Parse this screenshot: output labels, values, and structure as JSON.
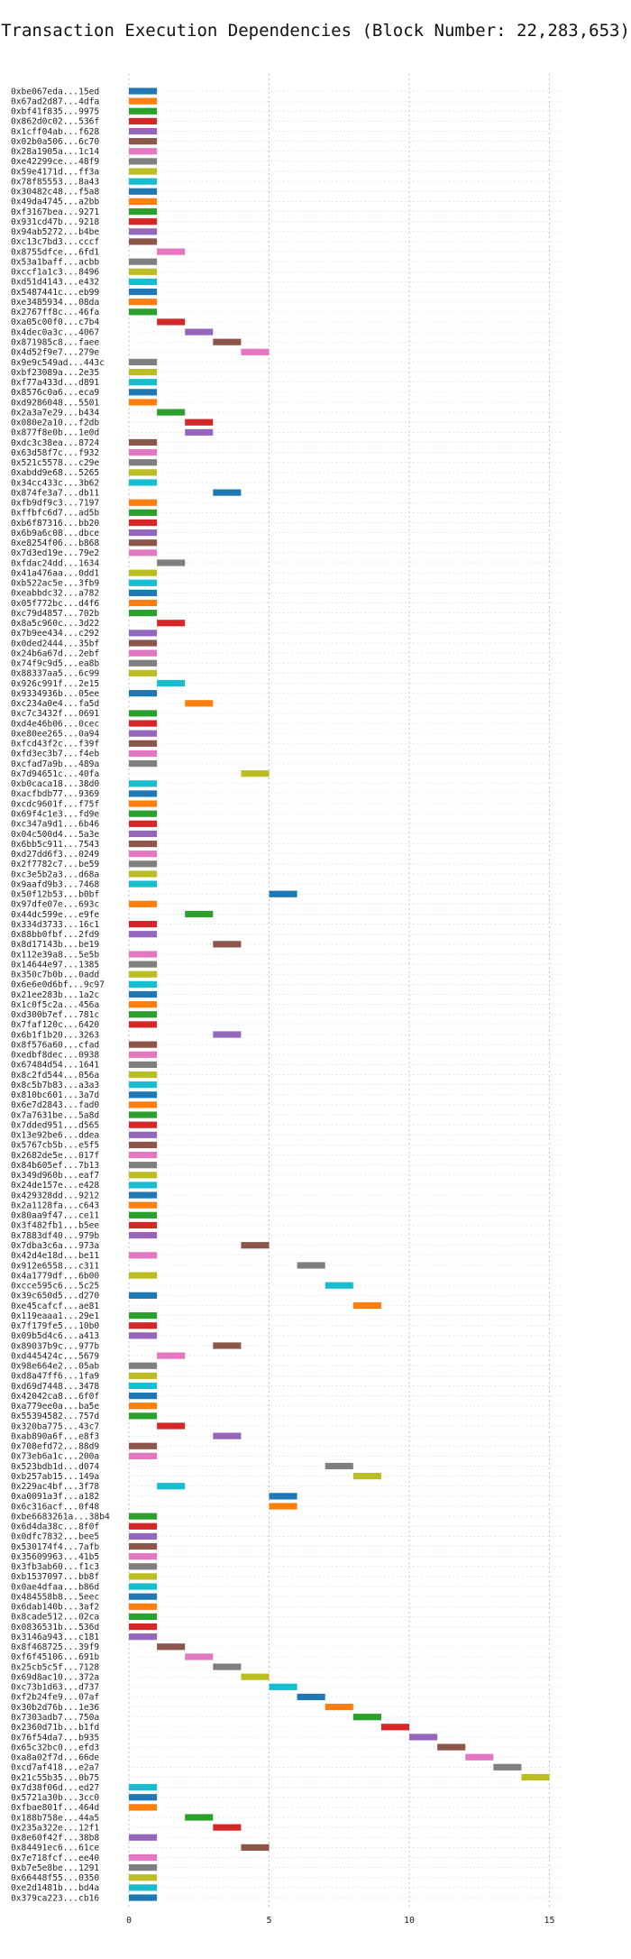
{
  "chart_data": {
    "type": "bar",
    "orientation": "horizontal-gantt",
    "title": "Transaction Execution Dependencies (Block Number: 22,283,653)",
    "xlabel": "",
    "ylabel": "",
    "xlim": [
      0,
      15.4
    ],
    "xticks": [
      0,
      5,
      10,
      15
    ],
    "grid": true,
    "colors": [
      "#1f77b4",
      "#ff7f0e",
      "#2ca02c",
      "#d62728",
      "#9467bd",
      "#8c564b",
      "#e377c2",
      "#7f7f7f",
      "#bcbd22",
      "#17becf"
    ],
    "transactions": [
      {
        "label": "0xbe067eda...15ed",
        "start": 0
      },
      {
        "label": "0x67ad2d87...4dfa",
        "start": 0
      },
      {
        "label": "0xbf41f835...9975",
        "start": 0
      },
      {
        "label": "0x862d0c02...536f",
        "start": 0
      },
      {
        "label": "0x1cff04ab...f628",
        "start": 0
      },
      {
        "label": "0x02b0a506...6c70",
        "start": 0
      },
      {
        "label": "0x28a1905a...1c14",
        "start": 0
      },
      {
        "label": "0xe42299ce...48f9",
        "start": 0
      },
      {
        "label": "0x59e4171d...ff3a",
        "start": 0
      },
      {
        "label": "0x78f85553...8a43",
        "start": 0
      },
      {
        "label": "0x30482c48...f5a8",
        "start": 0
      },
      {
        "label": "0x49da4745...a2bb",
        "start": 0
      },
      {
        "label": "0xf3167bea...9271",
        "start": 0
      },
      {
        "label": "0x931cd47b...9218",
        "start": 0
      },
      {
        "label": "0x94ab5272...b4be",
        "start": 0
      },
      {
        "label": "0xc13c7bd3...cccf",
        "start": 0
      },
      {
        "label": "0x8755dfce...6fd1",
        "start": 1
      },
      {
        "label": "0x53a1baff...acbb",
        "start": 0
      },
      {
        "label": "0xccf1a1c3...8496",
        "start": 0
      },
      {
        "label": "0xd51d4143...e432",
        "start": 0
      },
      {
        "label": "0x5487441c...eb99",
        "start": 0
      },
      {
        "label": "0xe3485934...08da",
        "start": 0
      },
      {
        "label": "0x2767ff8c...46fa",
        "start": 0
      },
      {
        "label": "0xa05c00f0...c7b4",
        "start": 1
      },
      {
        "label": "0x4dec0a3c...4067",
        "start": 2
      },
      {
        "label": "0x871985c8...faee",
        "start": 3
      },
      {
        "label": "0x4d52f9e7...279e",
        "start": 4
      },
      {
        "label": "0x9e9c549ad...443c",
        "start": 0
      },
      {
        "label": "0xbf23089a...2e35",
        "start": 0
      },
      {
        "label": "0xf77a433d...d891",
        "start": 0
      },
      {
        "label": "0x8576c0a6...eca9",
        "start": 0
      },
      {
        "label": "0xd9286048...5501",
        "start": 0
      },
      {
        "label": "0x2a3a7e29...b434",
        "start": 1
      },
      {
        "label": "0x080e2a10...f2db",
        "start": 2
      },
      {
        "label": "0x877f8e0b...1e0d",
        "start": 2
      },
      {
        "label": "0xdc3c38ea...8724",
        "start": 0
      },
      {
        "label": "0x63d58f7c...f932",
        "start": 0
      },
      {
        "label": "0x521c5578...c29e",
        "start": 0
      },
      {
        "label": "0xabdd9e68...5265",
        "start": 0
      },
      {
        "label": "0x34cc433c...3b62",
        "start": 0
      },
      {
        "label": "0x874fe3a7...db11",
        "start": 3
      },
      {
        "label": "0xfb9df9c3...7197",
        "start": 0
      },
      {
        "label": "0xffbfc6d7...ad5b",
        "start": 0
      },
      {
        "label": "0xb6f87316...bb20",
        "start": 0
      },
      {
        "label": "0x6b9a6c08...dbce",
        "start": 0
      },
      {
        "label": "0xe8254f06...b868",
        "start": 0
      },
      {
        "label": "0x7d3ed19e...79e2",
        "start": 0
      },
      {
        "label": "0xfdac24dd...1634",
        "start": 1
      },
      {
        "label": "0x41a476aa...0dd1",
        "start": 0
      },
      {
        "label": "0xb522ac5e...3fb9",
        "start": 0
      },
      {
        "label": "0xeabbdc32...a782",
        "start": 0
      },
      {
        "label": "0x05f772bc...d4f6",
        "start": 0
      },
      {
        "label": "0xc79d4857...702b",
        "start": 0
      },
      {
        "label": "0x8a5c960c...3d22",
        "start": 1
      },
      {
        "label": "0x7b9ee434...c292",
        "start": 0
      },
      {
        "label": "0x0ded2444...35bf",
        "start": 0
      },
      {
        "label": "0x24b6a67d...2ebf",
        "start": 0
      },
      {
        "label": "0x74f9c9d5...ea8b",
        "start": 0
      },
      {
        "label": "0x88337aa5...6c99",
        "start": 0
      },
      {
        "label": "0x926c991f...2e15",
        "start": 1
      },
      {
        "label": "0x9334936b...05ee",
        "start": 0
      },
      {
        "label": "0xc234a0e4...fa5d",
        "start": 2
      },
      {
        "label": "0xc7c3432f...0691",
        "start": 0
      },
      {
        "label": "0xd4e46b06...0cec",
        "start": 0
      },
      {
        "label": "0xe80ee265...0a94",
        "start": 0
      },
      {
        "label": "0xfcd43f2c...f39f",
        "start": 0
      },
      {
        "label": "0xfd3ec3b7...f4eb",
        "start": 0
      },
      {
        "label": "0xcfad7a9b...489a",
        "start": 0
      },
      {
        "label": "0x7d94651c...40fa",
        "start": 4
      },
      {
        "label": "0xb0caca18...38d0",
        "start": 0
      },
      {
        "label": "0xacfbdb77...9369",
        "start": 0
      },
      {
        "label": "0xcdc9601f...f75f",
        "start": 0
      },
      {
        "label": "0x69f4c1e3...fd9e",
        "start": 0
      },
      {
        "label": "0xc347a9d1...6b46",
        "start": 0
      },
      {
        "label": "0x04c500d4...5a3e",
        "start": 0
      },
      {
        "label": "0x6bb5c911...7543",
        "start": 0
      },
      {
        "label": "0xd27dd6f3...0249",
        "start": 0
      },
      {
        "label": "0x2f7782c7...be59",
        "start": 0
      },
      {
        "label": "0xc3e5b2a3...d68a",
        "start": 0
      },
      {
        "label": "0x9aafd9b3...7468",
        "start": 0
      },
      {
        "label": "0x50f12b53...b0bf",
        "start": 5
      },
      {
        "label": "0x97dfe07e...693c",
        "start": 0
      },
      {
        "label": "0x44dc599e...e9fe",
        "start": 2
      },
      {
        "label": "0x334d3733...16c1",
        "start": 0
      },
      {
        "label": "0x88bb0fbf...2fd9",
        "start": 0
      },
      {
        "label": "0x8d17143b...be19",
        "start": 3
      },
      {
        "label": "0x112e39a8...5e5b",
        "start": 0
      },
      {
        "label": "0x14644e97...1385",
        "start": 0
      },
      {
        "label": "0x350c7b0b...0add",
        "start": 0
      },
      {
        "label": "0x6e6e0d6bf...9c97",
        "start": 0
      },
      {
        "label": "0x21ee283b...1a2c",
        "start": 0
      },
      {
        "label": "0x1c0f5c2a...456a",
        "start": 0
      },
      {
        "label": "0xd300b7ef...781c",
        "start": 0
      },
      {
        "label": "0x7faf120c...6420",
        "start": 0
      },
      {
        "label": "0x6b1f1b20...3263",
        "start": 3
      },
      {
        "label": "0x8f576a60...cfad",
        "start": 0
      },
      {
        "label": "0xedbf8dec...0938",
        "start": 0
      },
      {
        "label": "0x67484d54...1641",
        "start": 0
      },
      {
        "label": "0x8c2fd544...056a",
        "start": 0
      },
      {
        "label": "0x8c5b7b83...a3a3",
        "start": 0
      },
      {
        "label": "0x810bc601...3a7d",
        "start": 0
      },
      {
        "label": "0x6e7d2843...fad0",
        "start": 0
      },
      {
        "label": "0x7a7631be...5a8d",
        "start": 0
      },
      {
        "label": "0x7dded951...d565",
        "start": 0
      },
      {
        "label": "0x13e92be6...ddea",
        "start": 0
      },
      {
        "label": "0x5767cb5b...e5f5",
        "start": 0
      },
      {
        "label": "0x2682de5e...017f",
        "start": 0
      },
      {
        "label": "0x84b605ef...7b13",
        "start": 0
      },
      {
        "label": "0x349d960b...eaf7",
        "start": 0
      },
      {
        "label": "0x24de157e...e428",
        "start": 0
      },
      {
        "label": "0x429328dd...9212",
        "start": 0
      },
      {
        "label": "0x2a1128fa...c643",
        "start": 0
      },
      {
        "label": "0x80aa9f47...ce11",
        "start": 0
      },
      {
        "label": "0x3f482fb1...b5ee",
        "start": 0
      },
      {
        "label": "0x7883df40...979b",
        "start": 0
      },
      {
        "label": "0x7dba3c6a...973a",
        "start": 4
      },
      {
        "label": "0x42d4e18d...be11",
        "start": 0
      },
      {
        "label": "0x912e6558...c311",
        "start": 6
      },
      {
        "label": "0x4a1779df...6b00",
        "start": 0
      },
      {
        "label": "0xcce595c6...5c25",
        "start": 7
      },
      {
        "label": "0x39c650d5...d270",
        "start": 0
      },
      {
        "label": "0xe45cafcf...ae81",
        "start": 8
      },
      {
        "label": "0x119eaaa1...29e1",
        "start": 0
      },
      {
        "label": "0x7f179fe5...10b0",
        "start": 0
      },
      {
        "label": "0x09b5d4c6...a413",
        "start": 0
      },
      {
        "label": "0x89037b9c...977b",
        "start": 3
      },
      {
        "label": "0xd445424c...5679",
        "start": 1
      },
      {
        "label": "0x98e664e2...05ab",
        "start": 0
      },
      {
        "label": "0xd8a47ff6...1fa9",
        "start": 0
      },
      {
        "label": "0xd69d7448...3478",
        "start": 0
      },
      {
        "label": "0x42042ca8...6f0f",
        "start": 0
      },
      {
        "label": "0xa779ee0a...ba5e",
        "start": 0
      },
      {
        "label": "0x55394582...757d",
        "start": 0
      },
      {
        "label": "0x320ba775...43c7",
        "start": 1
      },
      {
        "label": "0xab890a6f...e8f3",
        "start": 3
      },
      {
        "label": "0x708efd72...88d9",
        "start": 0
      },
      {
        "label": "0x73eb6a1c...200a",
        "start": 0
      },
      {
        "label": "0x523bdb1d...d074",
        "start": 7
      },
      {
        "label": "0xb257ab15...149a",
        "start": 8
      },
      {
        "label": "0x229ac4bf...3f78",
        "start": 1
      },
      {
        "label": "0xa0091a3f...a182",
        "start": 5
      },
      {
        "label": "0x6c316acf...0f48",
        "start": 5
      },
      {
        "label": "0xbe6683261a...38b4",
        "start": 0
      },
      {
        "label": "0x6d4da38c...8f0f",
        "start": 0
      },
      {
        "label": "0x0dfc7832...bee5",
        "start": 0
      },
      {
        "label": "0x530174f4...7afb",
        "start": 0
      },
      {
        "label": "0x35609963...41b5",
        "start": 0
      },
      {
        "label": "0x3fb3ab60...f1c3",
        "start": 0
      },
      {
        "label": "0xb1537097...bb8f",
        "start": 0
      },
      {
        "label": "0x0ae4dfaa...b86d",
        "start": 0
      },
      {
        "label": "0x484558b8...5eec",
        "start": 0
      },
      {
        "label": "0x6dab140b...3af2",
        "start": 0
      },
      {
        "label": "0x8cade512...02ca",
        "start": 0
      },
      {
        "label": "0x0836531b...536d",
        "start": 0
      },
      {
        "label": "0x3146a943...c181",
        "start": 0
      },
      {
        "label": "0x8f468725...39f9",
        "start": 1
      },
      {
        "label": "0xf6f45106...691b",
        "start": 2
      },
      {
        "label": "0x25cb5c5f...7128",
        "start": 3
      },
      {
        "label": "0x69d8ac10...372a",
        "start": 4
      },
      {
        "label": "0xc73b1d63...d737",
        "start": 5
      },
      {
        "label": "0xf2b24fe9...07af",
        "start": 6
      },
      {
        "label": "0x30b2d76b...1e36",
        "start": 7
      },
      {
        "label": "0x7303adb7...750a",
        "start": 8
      },
      {
        "label": "0x2360d71b...b1fd",
        "start": 9
      },
      {
        "label": "0x76f54da7...b935",
        "start": 10
      },
      {
        "label": "0x65c32bc0...efd3",
        "start": 11
      },
      {
        "label": "0xa8a02f7d...66de",
        "start": 12
      },
      {
        "label": "0xcd7af418...e2a7",
        "start": 13
      },
      {
        "label": "0x21c55b35...0b75",
        "start": 14
      },
      {
        "label": "0x7d38f06d...ed27",
        "start": 0
      },
      {
        "label": "0x5721a30b...3cc0",
        "start": 0
      },
      {
        "label": "0xfbae801f...464d",
        "start": 0
      },
      {
        "label": "0x188b758e...44a5",
        "start": 2
      },
      {
        "label": "0x235a322e...12f1",
        "start": 3
      },
      {
        "label": "0x8e60f42f...38b8",
        "start": 0
      },
      {
        "label": "0x84491ec6...61ce",
        "start": 4
      },
      {
        "label": "0x7e718fcf...ee40",
        "start": 0
      },
      {
        "label": "0xb7e5e8be...1291",
        "start": 0
      },
      {
        "label": "0x66448f55...0350",
        "start": 0
      },
      {
        "label": "0xe2d1481b...bd4a",
        "start": 0
      },
      {
        "label": "0x379ca223...cb16",
        "start": 0
      }
    ]
  }
}
